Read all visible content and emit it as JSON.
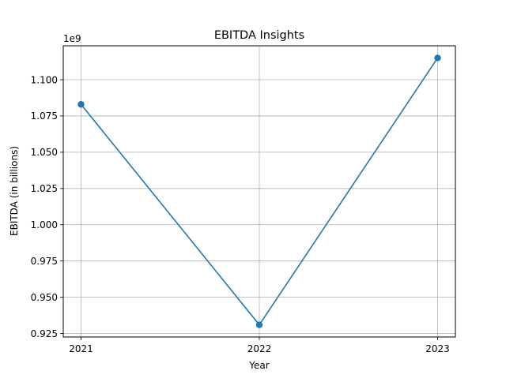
{
  "chart_data": {
    "type": "line",
    "title": "EBITDA Insights",
    "xlabel": "Year",
    "ylabel": "EBITDA (in billions)",
    "y_offset_label": "1e9",
    "categories": [
      "2021",
      "2022",
      "2023"
    ],
    "series": [
      {
        "values": [
          1083000000,
          931000000,
          1115000000
        ],
        "color": "#1f77b4",
        "marker": "circle"
      }
    ],
    "yticks": [
      0.925,
      0.95,
      0.975,
      1.0,
      1.025,
      1.05,
      1.075,
      1.1
    ],
    "ytick_labels": [
      "0.925",
      "0.950",
      "0.975",
      "1.000",
      "1.025",
      "1.050",
      "1.075",
      "1.100"
    ],
    "ylim": [
      0.9226,
      1.1234
    ],
    "y_scale_factor": 1000000000,
    "grid": true,
    "legend": false
  }
}
